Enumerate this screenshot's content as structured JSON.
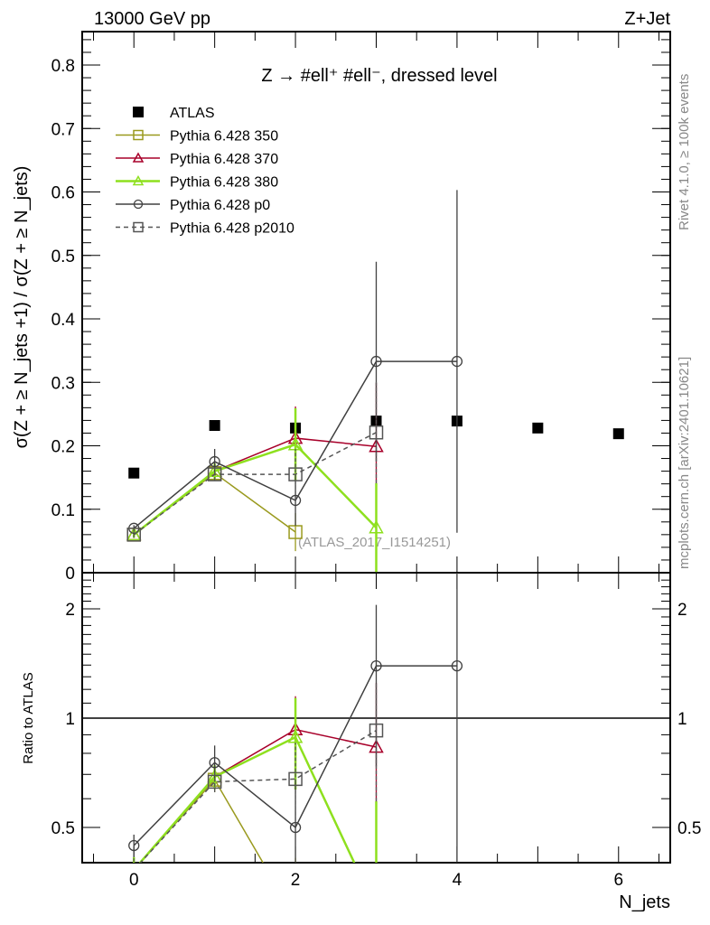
{
  "header": {
    "left": "13000 GeV pp",
    "right": "Z+Jet"
  },
  "side_labels": {
    "rivet": "Rivet 4.1.0, ≥ 100k events",
    "mcplots": "mcplots.cern.ch [arXiv:2401.10621]"
  },
  "analysis_label": "(ATLAS_2017_I1514251)",
  "chart_data": [
    {
      "type": "scatter",
      "title": "Z →  #ell⁺ #ell⁻, dressed level",
      "ylabel": "σ(Z + ≥ N_jets +1) / σ(Z + ≥ N_jets)",
      "ylim": [
        0,
        0.85
      ],
      "yticks": [
        "0",
        "0.1",
        "0.2",
        "0.3",
        "0.4",
        "0.5",
        "0.6",
        "0.7",
        "0.8"
      ],
      "xlim": [
        -0.64,
        6.64
      ],
      "legend_position": "top-left",
      "series": [
        {
          "name": "ATLAS",
          "color": "#000000",
          "marker": "filled-square",
          "x": [
            0,
            1,
            2,
            3,
            4,
            5,
            6
          ],
          "values": [
            0.157,
            0.232,
            0.228,
            0.239,
            0.239,
            0.228,
            0.219
          ],
          "err": [
            0.003,
            0.003,
            0.004,
            0.005,
            0.006,
            0.006,
            0.006
          ]
        },
        {
          "name": "Pythia 6.428 350",
          "color": "#9a9a1e",
          "marker": "open-square",
          "x": [
            0,
            1,
            2
          ],
          "values": [
            0.06,
            0.157,
            0.064
          ],
          "err": [
            0.005,
            0.012,
            0.03
          ]
        },
        {
          "name": "Pythia 6.428 370",
          "color": "#a8002a",
          "marker": "open-triangle",
          "x": [
            0,
            1,
            2,
            3
          ],
          "values": [
            0.06,
            0.16,
            0.212,
            0.199
          ],
          "err": [
            0.005,
            0.012,
            0.05,
            0.1
          ]
        },
        {
          "name": "Pythia 6.428 380",
          "color": "#8ee01e",
          "marker": "open-triangle",
          "x": [
            0,
            1,
            2,
            3
          ],
          "values": [
            0.06,
            0.16,
            0.202,
            0.071
          ],
          "err": [
            0.005,
            0.012,
            0.057,
            0.07
          ]
        },
        {
          "name": "Pythia 6.428 p0",
          "color": "#404040",
          "marker": "open-circle",
          "x": [
            0,
            1,
            2,
            3,
            4
          ],
          "values": [
            0.07,
            0.175,
            0.114,
            0.333,
            0.333
          ],
          "err": [
            0.005,
            0.02,
            0.04,
            0.157,
            0.27
          ]
        },
        {
          "name": "Pythia 6.428 p2010",
          "color": "#555555",
          "marker": "open-square-dashed",
          "x": [
            0,
            1,
            2,
            3
          ],
          "values": [
            0.06,
            0.155,
            0.155,
            0.221
          ],
          "err": [
            0.005,
            0.01,
            0.04,
            0.08
          ]
        }
      ]
    },
    {
      "type": "scatter",
      "ylabel": "Ratio to ATLAS",
      "xlabel": "N_jets",
      "ylim": [
        0.4,
        2.5
      ],
      "yscale": "log",
      "yticks": [
        "0.5",
        "1",
        "2"
      ],
      "xticks": [
        "0",
        "2",
        "4",
        "6"
      ],
      "reference_line": 1
    }
  ]
}
